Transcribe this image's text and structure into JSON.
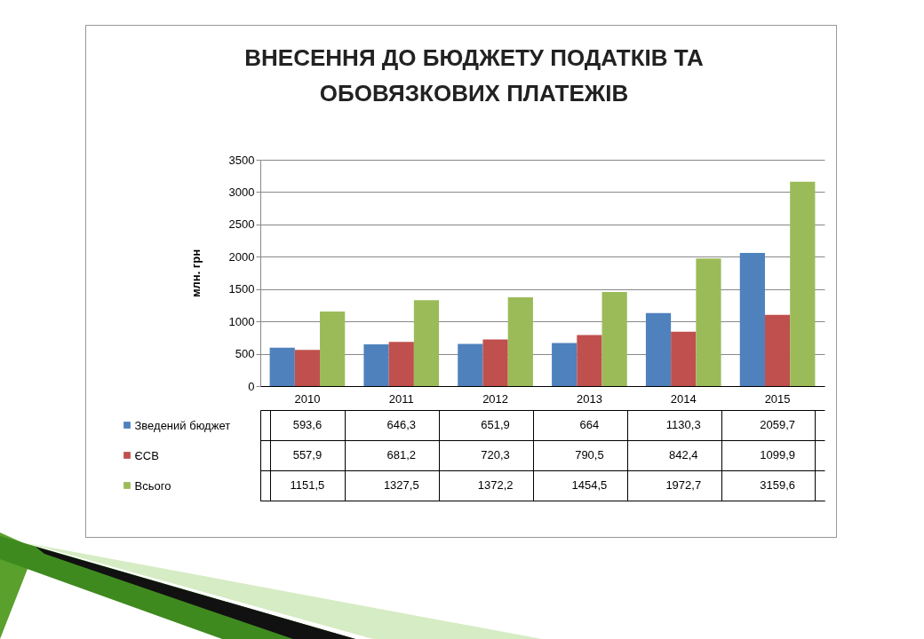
{
  "chart_data": {
    "type": "bar",
    "title": "ВНЕСЕННЯ ДО БЮДЖЕТУ ПОДАТКІВ ТА ОБОВЯЗКОВИХ ПЛАТЕЖІВ",
    "ylabel": "млн. грн",
    "categories": [
      "2010",
      "2011",
      "2012",
      "2013",
      "2014",
      "2015"
    ],
    "series": [
      {
        "name": "Зведений бюджет",
        "color": "#4f81bd",
        "values": [
          593.6,
          646.3,
          651.9,
          664,
          1130.3,
          2059.7
        ],
        "value_labels": [
          "593,6",
          "646,3",
          "651,9",
          "664",
          "1130,3",
          "2059,7"
        ]
      },
      {
        "name": "ЄСВ",
        "color": "#c0504d",
        "values": [
          557.9,
          681.2,
          720.3,
          790.5,
          842.4,
          1099.9
        ],
        "value_labels": [
          "557,9",
          "681,2",
          "720,3",
          "790,5",
          "842,4",
          "1099,9"
        ]
      },
      {
        "name": "Всього",
        "color": "#9bbb59",
        "values": [
          1151.5,
          1327.5,
          1372.2,
          1454.5,
          1972.7,
          3159.6
        ],
        "value_labels": [
          "1151,5",
          "1327,5",
          "1372,2",
          "1454,5",
          "1972,7",
          "3159,6"
        ]
      }
    ],
    "ylim": [
      0,
      3500
    ],
    "yticks": [
      0,
      500,
      1000,
      1500,
      2000,
      2500,
      3000,
      3500
    ],
    "grid": "y",
    "legend": "bottom"
  }
}
